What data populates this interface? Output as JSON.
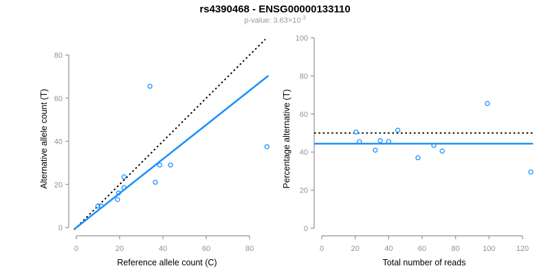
{
  "figure": {
    "title": "rs4390468 - ENSG00000133110",
    "subtitle_base": "p-value: 3.63×10",
    "subtitle_exponent": "-3"
  },
  "colors": {
    "accent_blue": "#1E90FF",
    "line_black": "#000000",
    "axis_gray": "#919191",
    "label_black": "#000000",
    "subtitle_gray": "#999999",
    "background": "#FFFFFF"
  },
  "chart_data": [
    {
      "type": "scatter",
      "name": "allele-counts-scatter",
      "xlabel": "Reference allele count (C)",
      "ylabel": "Alternative allele count (T)",
      "xlim": [
        0,
        80
      ],
      "ylim": [
        0,
        80
      ],
      "xticks": [
        0,
        20,
        40,
        60,
        80
      ],
      "yticks": [
        0,
        20,
        40,
        60,
        80
      ],
      "grid": false,
      "legend": "none",
      "points": [
        [
          10,
          10
        ],
        [
          11.5,
          10
        ],
        [
          19,
          13
        ],
        [
          19.5,
          16
        ],
        [
          22,
          18.5
        ],
        [
          22,
          23.5
        ],
        [
          34,
          65.5
        ],
        [
          36.5,
          21
        ],
        [
          38.5,
          29
        ],
        [
          43.5,
          29
        ],
        [
          88,
          37.5
        ]
      ],
      "lines": [
        {
          "name": "identity-line",
          "style": "dotted",
          "color": "#000000",
          "slope": 1,
          "intercept": 0,
          "x_from": -1,
          "x_to": 87.3
        },
        {
          "name": "regression-line",
          "style": "solid",
          "color": "#1E90FF",
          "slope": 0.794,
          "intercept": 0,
          "x_from": -1,
          "x_to": 88.7
        }
      ]
    },
    {
      "type": "scatter",
      "name": "percentage-vs-reads-scatter",
      "xlabel": "Total number of reads",
      "ylabel": "Percentage alternative (T)",
      "xlim": [
        0,
        120
      ],
      "ylim": [
        0,
        100
      ],
      "xticks": [
        0,
        20,
        40,
        60,
        80,
        100,
        120
      ],
      "yticks": [
        0,
        20,
        40,
        60,
        80,
        100
      ],
      "grid": false,
      "legend": "none",
      "points": [
        [
          20.5,
          50.5
        ],
        [
          22.5,
          45.5
        ],
        [
          32,
          41
        ],
        [
          35,
          46
        ],
        [
          40,
          45.5
        ],
        [
          45.5,
          51.5
        ],
        [
          57.5,
          37
        ],
        [
          67,
          43.5
        ],
        [
          72,
          40.5
        ],
        [
          99,
          65.5
        ],
        [
          125,
          29.5
        ]
      ],
      "lines": [
        {
          "name": "expected-50pct-line",
          "style": "dotted",
          "color": "#000000",
          "slope": 0,
          "intercept": 50,
          "x_from": -4.5,
          "x_to": 126.3
        },
        {
          "name": "mean-percentage-line",
          "style": "solid",
          "color": "#1E90FF",
          "slope": 0,
          "intercept": 44.4,
          "x_from": -4.5,
          "x_to": 126.3
        }
      ]
    }
  ]
}
